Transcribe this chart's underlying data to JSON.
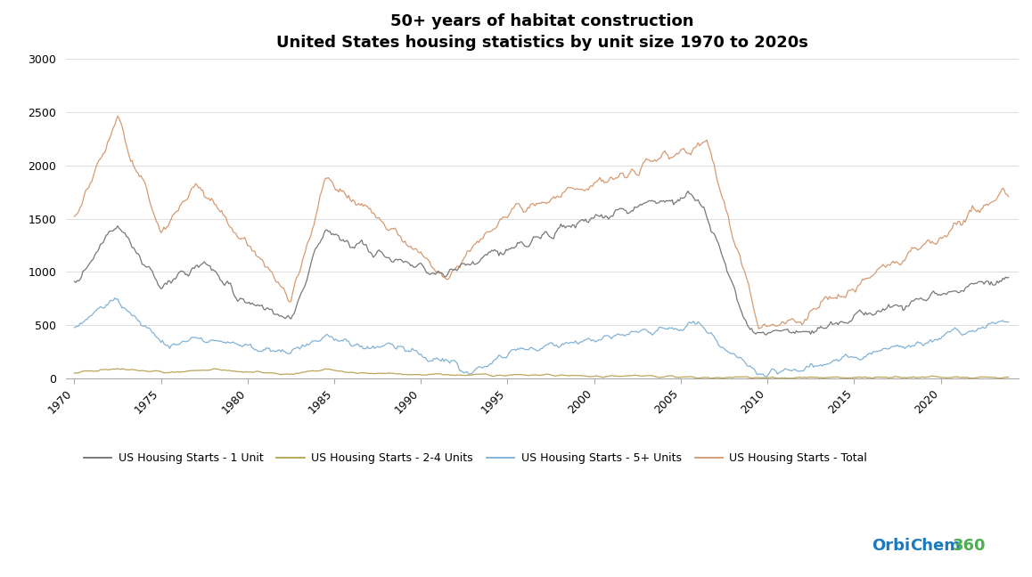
{
  "title_line1": "50+ years of habitat construction",
  "title_line2": "United States housing statistics by unit size 1970 to 2020s",
  "title_fontsize": 13,
  "title_fontweight": "bold",
  "ylim": [
    0,
    3000
  ],
  "yticks": [
    0,
    500,
    1000,
    1500,
    2000,
    2500,
    3000
  ],
  "xticks": [
    1970,
    1975,
    1980,
    1985,
    1990,
    1995,
    2000,
    2005,
    2010,
    2015,
    2020
  ],
  "line_colors": {
    "1unit": "#707070",
    "2_4unit": "#b8a050",
    "5plus": "#7bafd4",
    "total": "#d4956a"
  },
  "line_width": 0.9,
  "legend_labels": [
    "US Housing Starts - 1 Unit",
    "US Housing Starts - 2-4 Units",
    "US Housing Starts - 5+ Units",
    "US Housing Starts - Total"
  ],
  "background_color": "#ffffff",
  "grid_color": "#d8d8d8",
  "logo_color_orbi": "#1a7abf",
  "logo_color_360": "#4caf50"
}
